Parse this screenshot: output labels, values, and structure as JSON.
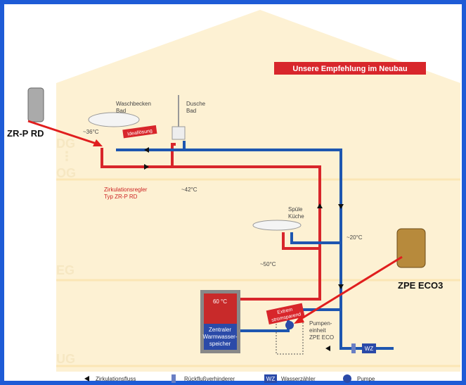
{
  "header": {
    "banner": "Unsere Empfehlung im Neubau"
  },
  "floors": [
    "DG",
    "OG",
    "EG",
    "UG"
  ],
  "products": [
    "ZR-P RD",
    "ZPE ECO3"
  ],
  "tank": {
    "temp": "60 °C",
    "lines": [
      "Zentraler",
      "Warmwasser-",
      "speicher"
    ]
  },
  "labels": {
    "waschbecken": [
      "Waschbecken",
      "Bad"
    ],
    "dusche": [
      "Dusche",
      "Bad"
    ],
    "ideal": "Ideallösung",
    "t36": "~36°C",
    "t42": "~42°C",
    "regler": [
      "Zirkulationsregler",
      "Typ ZR-P RD"
    ],
    "spuele": [
      "Spüle",
      "Küche"
    ],
    "t20": "~20°C",
    "t50": "~50°C",
    "extreme": [
      "Extrem",
      "stromsparend"
    ],
    "pump": [
      "Pumpen-",
      "einheit",
      "ZPE ECO"
    ],
    "wz": "WZ"
  },
  "legend": [
    "Zirkulationsfluss",
    "Rückflußverhinderer",
    "Wasserzähler",
    "Pumpe"
  ]
}
